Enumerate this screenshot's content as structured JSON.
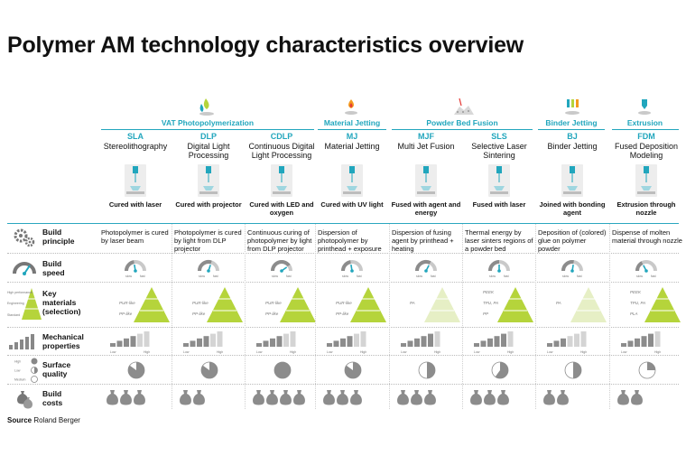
{
  "title": "Polymer AM technology characteristics overview",
  "groups": [
    {
      "label": "Resin-based",
      "color": "#21a6bd"
    },
    {
      "label": "Powder-based",
      "color": "#b5d43b"
    },
    {
      "label": "Filament",
      "color": "#a9a9a9"
    }
  ],
  "families": [
    {
      "label": "VAT Photopolymerization",
      "color": "#21a6bd"
    },
    {
      "label": "Material Jetting",
      "color": "#21a6bd"
    },
    {
      "label": "Powder Bed Fusion",
      "color": "#21a6bd"
    },
    {
      "label": "Binder Jetting",
      "color": "#21a6bd"
    },
    {
      "label": "Extrusion",
      "color": "#21a6bd"
    }
  ],
  "technologies": [
    {
      "abbr": "SLA",
      "name": "Stereolithography",
      "caption": "Cured with laser",
      "principle": "Photopolymer is cured by laser beam",
      "speed_level": 0.45,
      "materials": [
        "PUR-like",
        "PP-like"
      ],
      "materials_pos": "left",
      "pyramid": "green",
      "mech_level": 4,
      "surface": 0.85,
      "cost": 3
    },
    {
      "abbr": "DLP",
      "name": "Digital Light Processing",
      "caption": "Cured with projector",
      "principle": "Photopolymer is cured by light from DLP projector",
      "speed_level": 0.6,
      "materials": [
        "PUR-like",
        "PP-like"
      ],
      "materials_pos": "left",
      "pyramid": "green",
      "mech_level": 4,
      "surface": 0.85,
      "cost": 2
    },
    {
      "abbr": "CDLP",
      "name": "Continuous Digital Light Processing",
      "caption": "Cured with LED and oxygen",
      "principle": "Continuous curing of photopolymer by light from DLP projector",
      "speed_level": 0.8,
      "materials": [
        "PUR-like",
        "PP-like"
      ],
      "materials_pos": "left",
      "pyramid": "green",
      "mech_level": 4,
      "surface": 1.0,
      "cost": 4
    },
    {
      "abbr": "MJ",
      "name": "Material Jetting",
      "caption": "Cured with UV light",
      "principle": "Dispersion of photopolymer by printhead + exposure",
      "speed_level": 0.45,
      "materials": [
        "PUR-like",
        "PP-like"
      ],
      "materials_pos": "left",
      "pyramid": "green",
      "mech_level": 4,
      "surface": 0.85,
      "cost": 3
    },
    {
      "abbr": "MJF",
      "name": "Multi Jet Fusion",
      "caption": "Fused with agent and energy",
      "principle": "Dispersion of fusing agent by printhead + heating",
      "speed_level": 0.65,
      "materials": [
        "PA"
      ],
      "materials_pos": "left",
      "pyramid": "light",
      "mech_level": 5,
      "surface": 0.5,
      "cost": 3
    },
    {
      "abbr": "SLS",
      "name": "Selective Laser Sintering",
      "caption": "Fused with laser",
      "principle": "Thermal energy by laser sinters regions of a powder bed",
      "speed_level": 0.5,
      "materials": [
        "PEEK",
        "TPU, PA",
        "PP"
      ],
      "materials_pos": "left",
      "pyramid": "green",
      "mech_level": 5,
      "surface": 0.6,
      "cost": 3
    },
    {
      "abbr": "BJ",
      "name": "Binder Jetting",
      "caption": "Joined with bonding agent",
      "principle": "Deposition of (colored) glue on polymer powder",
      "speed_level": 0.55,
      "materials": [
        "PA"
      ],
      "materials_pos": "left",
      "pyramid": "light",
      "mech_level": 3,
      "surface": 0.5,
      "cost": 2
    },
    {
      "abbr": "FDM",
      "name": "Fused Deposition Modeling",
      "caption": "Extrusion through nozzle",
      "principle": "Dispense of molten material through nozzle",
      "speed_level": 0.35,
      "materials": [
        "PEEK",
        "TPU, PA",
        "PLA"
      ],
      "materials_pos": "left",
      "pyramid": "green",
      "mech_level": 5,
      "surface": 0.25,
      "cost": 2
    }
  ],
  "rows": [
    {
      "label": "Build principle",
      "icon": "gears-icon"
    },
    {
      "label": "Build speed",
      "icon": "speedometer-icon"
    },
    {
      "label": "Key materials (selection)",
      "icon": "material-pyramid-icon"
    },
    {
      "label": "Mechanical properties",
      "icon": "bar-steps-icon"
    },
    {
      "label": "Surface quality",
      "icon": "surface-circles-icon"
    },
    {
      "label": "Build costs",
      "icon": "money-bags-icon"
    }
  ],
  "speed_labels": {
    "low": "slow",
    "high": "fast"
  },
  "mech_labels": {
    "low": "Low",
    "high": "High"
  },
  "legend_pyramid": [
    "High performance",
    "Engineering",
    "Standard"
  ],
  "legend_surface": [
    "High",
    "Low",
    "Medium"
  ],
  "colors": {
    "accent": "#21a6bd",
    "green": "#b5d43b",
    "gray": "#8c8c8c",
    "lightgray": "#c9c9c9"
  },
  "source_label": "Source",
  "source": "Roland Berger"
}
